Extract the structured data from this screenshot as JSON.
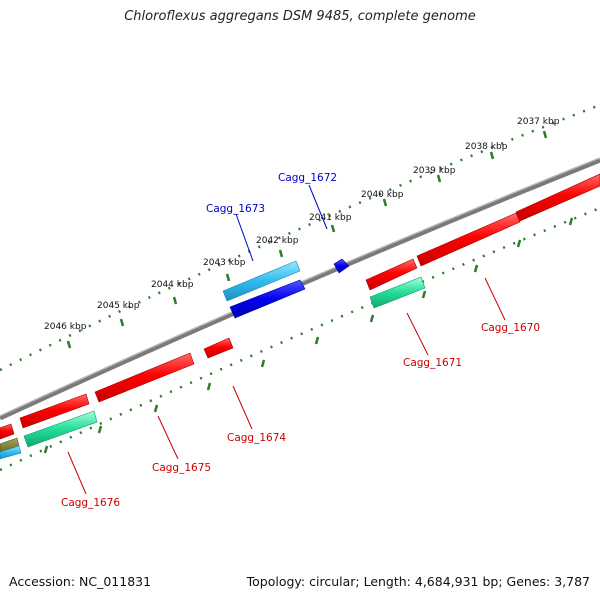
{
  "title": "Chloroflexus aggregans DSM 9485, complete genome",
  "footer": {
    "accession": "Accession: NC_011831",
    "stats": "Topology: circular; Length: 4,684,931 bp; Genes: 3,787"
  },
  "colors": {
    "backbone": "#777777",
    "tick": "#2a7d2a",
    "forward_cds": "#ff0000",
    "reverse_cds": "#ff0000",
    "label_forward": "#0000cc",
    "label_reverse": "#cc0000",
    "rna_light": "#33bbee",
    "rna_dark": "#0000ee",
    "green_feature": "#22dd99"
  },
  "ticks": [
    {
      "label": "2037 kbp"
    },
    {
      "label": "2038 kbp"
    },
    {
      "label": "2039 kbp"
    },
    {
      "label": "2040 kbp"
    },
    {
      "label": "2041 kbp"
    },
    {
      "label": "2042 kbp"
    },
    {
      "label": "2043 kbp"
    },
    {
      "label": "2044 kbp"
    },
    {
      "label": "2045 kbp"
    },
    {
      "label": "2046 kbp"
    }
  ],
  "genes": [
    {
      "name": "Cagg_1670",
      "strand": "reverse"
    },
    {
      "name": "Cagg_1671",
      "strand": "reverse"
    },
    {
      "name": "Cagg_1672",
      "strand": "forward"
    },
    {
      "name": "Cagg_1673",
      "strand": "forward"
    },
    {
      "name": "Cagg_1674",
      "strand": "reverse"
    },
    {
      "name": "Cagg_1675",
      "strand": "reverse"
    },
    {
      "name": "Cagg_1676",
      "strand": "reverse"
    }
  ]
}
